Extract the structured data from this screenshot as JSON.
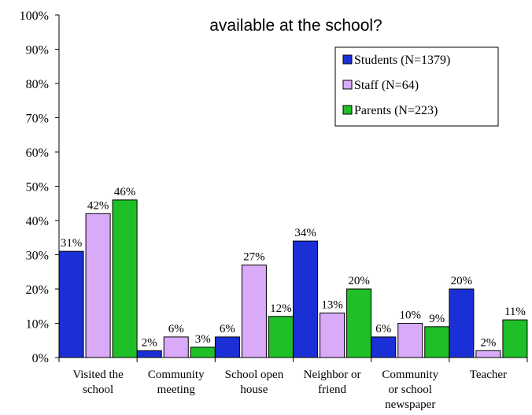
{
  "chart_data": {
    "type": "bar",
    "title_visible": "available at the school?",
    "categories": [
      [
        "Visited the",
        "school"
      ],
      [
        "Community",
        "meeting"
      ],
      [
        "School open",
        "house"
      ],
      [
        "Neighbor or",
        "friend"
      ],
      [
        "Community",
        "or school",
        "newspaper"
      ],
      [
        "Teacher"
      ]
    ],
    "series": [
      {
        "name": "Students (N=1379)",
        "color": "#1a2fd6",
        "values": [
          31,
          2,
          6,
          34,
          6,
          20
        ]
      },
      {
        "name": "Staff (N=64)",
        "color": "#d9aaf7",
        "values": [
          42,
          6,
          27,
          13,
          10,
          2
        ]
      },
      {
        "name": "Parents (N=223)",
        "color": "#1fbf28",
        "values": [
          46,
          3,
          12,
          20,
          9,
          11
        ]
      }
    ],
    "ylim": [
      0,
      100
    ],
    "yticks": [
      0,
      10,
      20,
      30,
      40,
      50,
      60,
      70,
      80,
      90,
      100
    ],
    "y_unit": "%",
    "legend_position": "top-right",
    "grid": false
  }
}
